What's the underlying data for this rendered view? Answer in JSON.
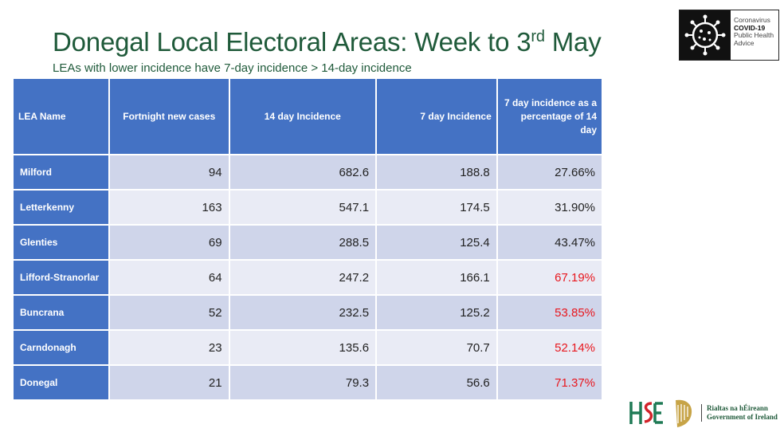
{
  "header": {
    "title_main": "Donegal Local Electoral Areas: Week to 3",
    "title_sup": "rd",
    "title_end": " May",
    "subtitle": "LEAs with lower incidence have 7-day incidence > 14-day incidence"
  },
  "badge": {
    "line1": "Coronavirus",
    "line2": "COVID-19",
    "line3": "Public Health",
    "line4": "Advice",
    "icon": "virus-icon"
  },
  "table": {
    "headers": [
      "LEA Name",
      "Fortnight new cases",
      "14 day Incidence",
      "7 day Incidence",
      "7 day incidence as a percentage of 14 day"
    ],
    "rows": [
      {
        "name": "Milford",
        "cases": "94",
        "inc14": "682.6",
        "inc7": "188.8",
        "pct": "27.66%",
        "highlight": false
      },
      {
        "name": "Letterkenny",
        "cases": "163",
        "inc14": "547.1",
        "inc7": "174.5",
        "pct": "31.90%",
        "highlight": false
      },
      {
        "name": "Glenties",
        "cases": "69",
        "inc14": "288.5",
        "inc7": "125.4",
        "pct": "43.47%",
        "highlight": false
      },
      {
        "name": "Lifford-Stranorlar",
        "cases": "64",
        "inc14": "247.2",
        "inc7": "166.1",
        "pct": "67.19%",
        "highlight": true
      },
      {
        "name": "Buncrana",
        "cases": "52",
        "inc14": "232.5",
        "inc7": "125.2",
        "pct": "53.85%",
        "highlight": true
      },
      {
        "name": "Carndonagh",
        "cases": "23",
        "inc14": "135.6",
        "inc7": "70.7",
        "pct": "52.14%",
        "highlight": true
      },
      {
        "name": "Donegal",
        "cases": "21",
        "inc14": "79.3",
        "inc7": "56.6",
        "pct": "71.37%",
        "highlight": true
      }
    ],
    "colors": {
      "header": "#4472c4",
      "band_dark": "#cfd5ea",
      "band_light": "#e9ebf5",
      "highlight_text": "#e8161d"
    }
  },
  "footer": {
    "hse_logo": "hse-logo-icon",
    "harp_logo": "harp-icon",
    "gov_line1": "Rialtas na hÉireann",
    "gov_line2": "Government of Ireland"
  }
}
